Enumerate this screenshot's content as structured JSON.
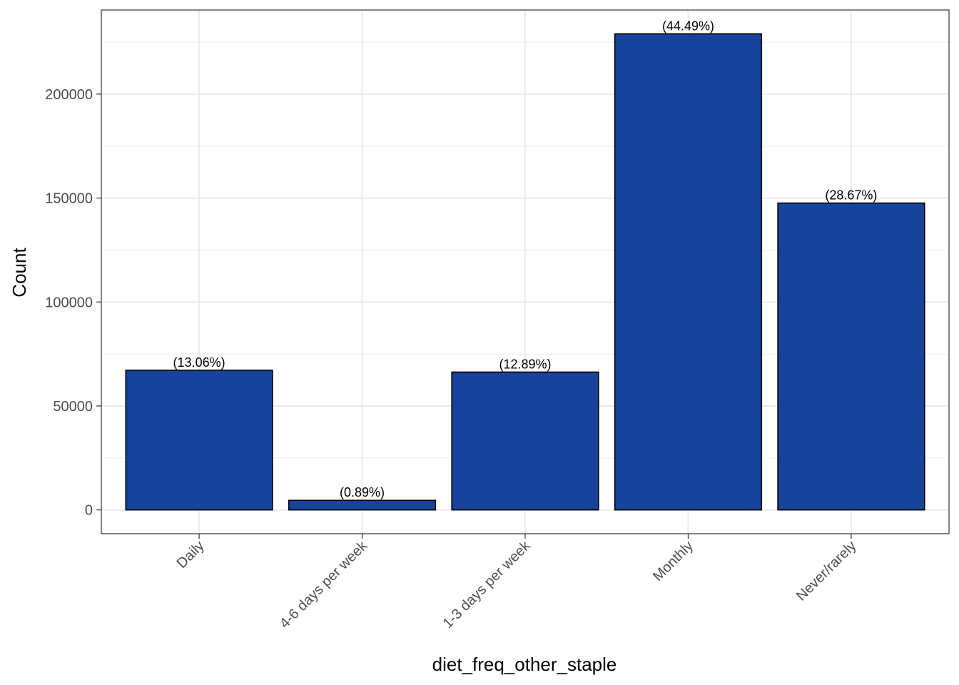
{
  "chart_data": {
    "type": "bar",
    "categories": [
      "Daily",
      "4-6 days per week",
      "1-3 days per week",
      "Monthly",
      "Never/rarely"
    ],
    "values": [
      67200,
      4600,
      66300,
      229000,
      147600
    ],
    "labels": [
      "(13.06%)",
      "(0.89%)",
      "(12.89%)",
      "(44.49%)",
      "(28.67%)"
    ],
    "xlabel": "diet_freq_other_staple",
    "ylabel": "Count",
    "ylim": [
      -11450,
      240450
    ],
    "yticks": [
      0,
      50000,
      100000,
      150000,
      200000
    ],
    "ytick_labels": [
      "0",
      "50000",
      "100000",
      "150000",
      "200000"
    ],
    "grid": true,
    "bar_color": "#18439A",
    "bar_outline": "#000000",
    "grid_color": "#ebebeb",
    "panel_border": "#333333"
  }
}
